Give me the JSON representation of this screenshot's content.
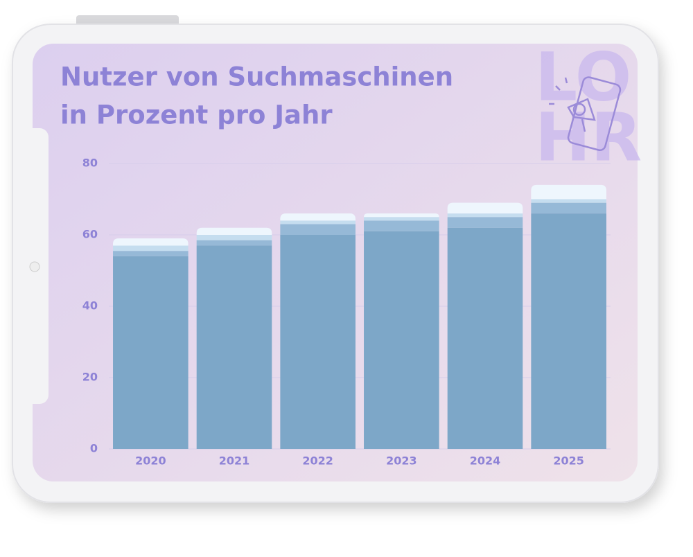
{
  "logo": [
    "LO",
    "HR"
  ],
  "chart_data": {
    "type": "stacked-bar",
    "title": [
      "Nutzer von Suchmaschinen",
      "in Prozent pro Jahr"
    ],
    "categories": [
      "2020",
      "2021",
      "2022",
      "2023",
      "2024",
      "2025"
    ],
    "series": [
      {
        "color": "#7da7c8",
        "values": [
          54,
          57,
          60,
          61,
          62,
          66
        ]
      },
      {
        "color": "#96b9d7",
        "values": [
          1.5,
          1.5,
          3,
          3,
          3,
          3
        ]
      },
      {
        "color": "#c5ddef",
        "values": [
          1.5,
          1.5,
          1,
          1,
          1,
          1
        ]
      },
      {
        "color": "#eef6fd",
        "values": [
          2,
          2,
          2,
          1,
          3,
          4
        ]
      }
    ],
    "ylim": [
      0,
      80
    ],
    "yticks": [
      0,
      20,
      40,
      60,
      80
    ],
    "grid": true
  }
}
